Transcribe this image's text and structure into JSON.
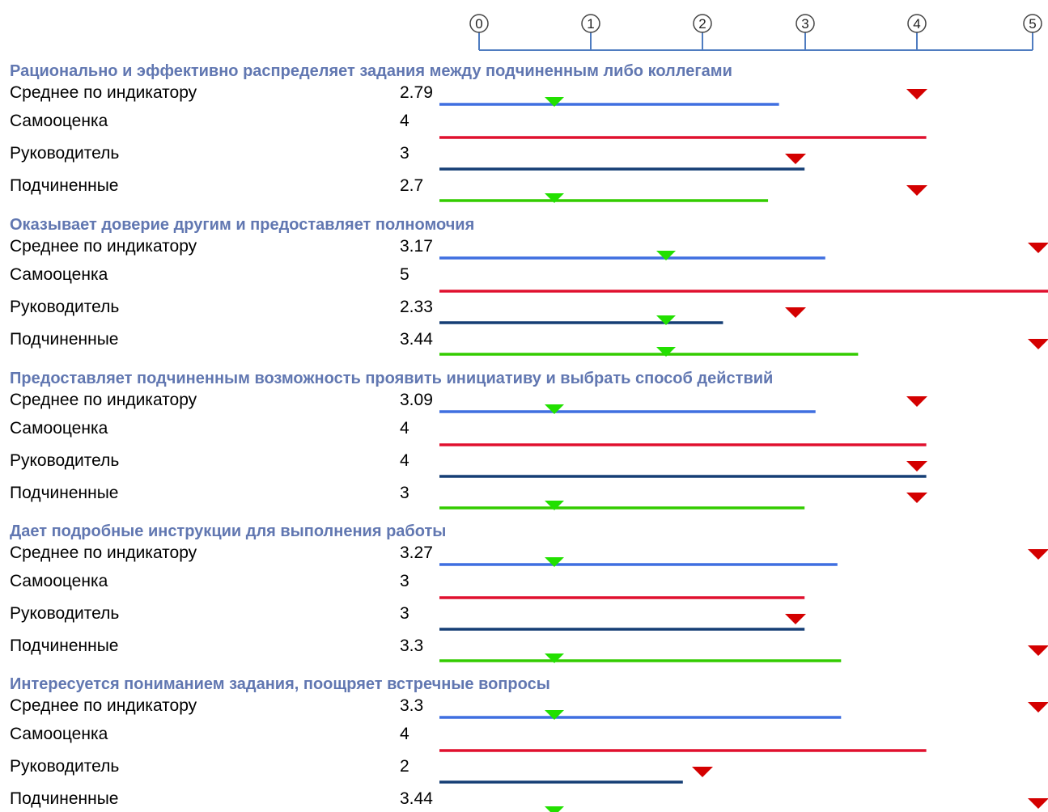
{
  "chart_data": {
    "type": "bar",
    "scale": {
      "ticks": [
        "0",
        "1",
        "2",
        "3",
        "4",
        "5"
      ],
      "xlim": [
        0,
        5
      ]
    },
    "colors": {
      "scale_line": "#4f7cc0",
      "section_title": "#6177b1",
      "marker_green": "#22e000",
      "marker_red": "#d40000",
      "series": {
        "Среднее по индикатору": "#3f6fe0",
        "Самооценка": "#e0102e",
        "Руководитель": "#153e75",
        "Подчиненные": "#33cc00"
      }
    },
    "groups": [
      {
        "title": "Рационально и эффективно распределяет задания между подчиненным либо коллегами",
        "rows": [
          {
            "label": "Среднее по индикатору",
            "value_text": "2.79",
            "value": 2.79,
            "min_marker": 1,
            "max_marker": 4
          },
          {
            "label": "Самооценка",
            "value_text": "4",
            "value": 4
          },
          {
            "label": "Руководитель",
            "value_text": "3",
            "value": 3,
            "max_marker": 3
          },
          {
            "label": "Подчиненные",
            "value_text": "2.7",
            "value": 2.7,
            "min_marker": 1,
            "max_marker": 4
          }
        ]
      },
      {
        "title": "Оказывает доверие другим и предоставляет полномочия",
        "rows": [
          {
            "label": "Среднее по индикатору",
            "value_text": "3.17",
            "value": 3.17,
            "min_marker": 2,
            "max_marker": 5
          },
          {
            "label": "Самооценка",
            "value_text": "5",
            "value": 5
          },
          {
            "label": "Руководитель",
            "value_text": "2.33",
            "value": 2.33,
            "min_marker": 2,
            "max_marker": 3
          },
          {
            "label": "Подчиненные",
            "value_text": "3.44",
            "value": 3.44,
            "min_marker": 2,
            "max_marker": 5
          }
        ]
      },
      {
        "title": "Предоставляет подчиненным возможность проявить инициативу и выбрать способ действий",
        "rows": [
          {
            "label": "Среднее по индикатору",
            "value_text": "3.09",
            "value": 3.09,
            "min_marker": 1,
            "max_marker": 4
          },
          {
            "label": "Самооценка",
            "value_text": "4",
            "value": 4
          },
          {
            "label": "Руководитель",
            "value_text": "4",
            "value": 4,
            "max_marker": 4
          },
          {
            "label": "Подчиненные",
            "value_text": "3",
            "value": 3,
            "min_marker": 1,
            "max_marker": 4
          }
        ]
      },
      {
        "title": "Дает подробные инструкции для выполнения работы",
        "rows": [
          {
            "label": "Среднее по индикатору",
            "value_text": "3.27",
            "value": 3.27,
            "min_marker": 1,
            "max_marker": 5
          },
          {
            "label": "Самооценка",
            "value_text": "3",
            "value": 3
          },
          {
            "label": "Руководитель",
            "value_text": "3",
            "value": 3,
            "max_marker": 3
          },
          {
            "label": "Подчиненные",
            "value_text": "3.3",
            "value": 3.3,
            "min_marker": 1,
            "max_marker": 5
          }
        ]
      },
      {
        "title": "Интересуется пониманием задания, поощряет встречные вопросы",
        "rows": [
          {
            "label": "Среднее по индикатору",
            "value_text": "3.3",
            "value": 3.3,
            "min_marker": 1,
            "max_marker": 5
          },
          {
            "label": "Самооценка",
            "value_text": "4",
            "value": 4
          },
          {
            "label": "Руководитель",
            "value_text": "2",
            "value": 2,
            "max_marker": 2
          },
          {
            "label": "Подчиненные",
            "value_text": "3.44",
            "value": 3.44,
            "min_marker": 1,
            "max_marker": 5
          }
        ]
      }
    ]
  }
}
